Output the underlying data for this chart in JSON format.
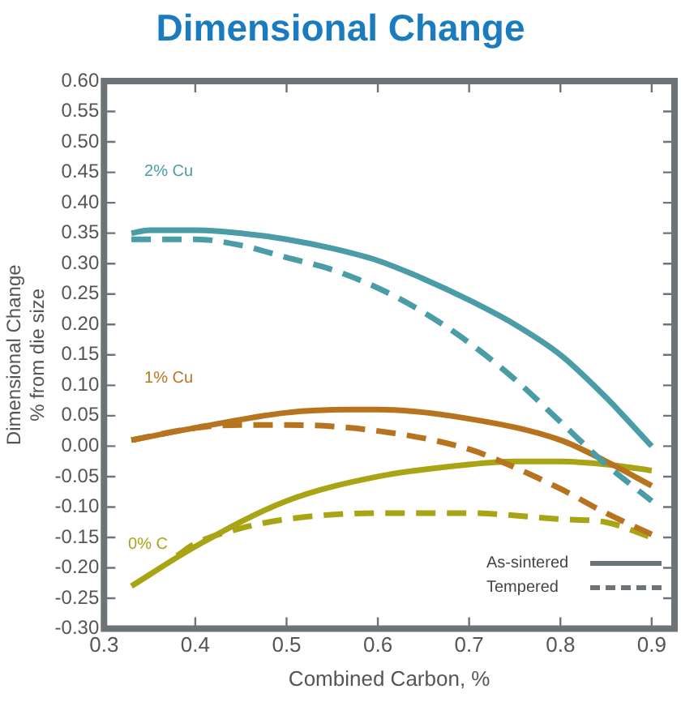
{
  "chart_data": {
    "type": "line",
    "title": "Dimensional Change",
    "xlabel": "Combined Carbon, %",
    "ylabel": "Dimensional Change\n% from die size",
    "xlim": [
      0.3,
      0.925
    ],
    "xticks": [
      0.3,
      0.4,
      0.5,
      0.6,
      0.7,
      0.8,
      0.9
    ],
    "ylim": [
      -0.3,
      0.6
    ],
    "yticks": [
      {
        "value": -0.3,
        "label": "-0.30"
      },
      {
        "value": -0.25,
        "label": "-0.25"
      },
      {
        "value": -0.2,
        "label": "-0.20"
      },
      {
        "value": -0.15,
        "label": "-0.15"
      },
      {
        "value": -0.1,
        "label": "-0.10"
      },
      {
        "value": -0.05,
        "label": "-0.05"
      },
      {
        "value": 0,
        "label": "0.00"
      },
      {
        "value": 0.05,
        "label": "0.05"
      },
      {
        "value": 0.1,
        "label": "0.10"
      },
      {
        "value": 0.15,
        "label": "0.15"
      },
      {
        "value": 0.2,
        "label": "0.20"
      },
      {
        "value": 0.25,
        "label": "0.25"
      },
      {
        "value": 0.3,
        "label": "0.30"
      },
      {
        "value": 0.35,
        "label": "0.35"
      },
      {
        "value": 0.4,
        "label": "0.40"
      },
      {
        "value": 0.45,
        "label": "0.45"
      },
      {
        "value": 0.5,
        "label": "0.50"
      },
      {
        "value": 0.55,
        "label": "0.55"
      },
      {
        "value": 0.6,
        "label": "0.60"
      }
    ],
    "grid": false,
    "legend": false,
    "marker": "none",
    "series": [
      {
        "color": "#4a9ca6",
        "line_style": "solid",
        "x": [
          0.33,
          0.35,
          0.4,
          0.45,
          0.5,
          0.55,
          0.6,
          0.65,
          0.7,
          0.75,
          0.8,
          0.85,
          0.9
        ],
        "values": [
          0.35,
          0.355,
          0.355,
          0.35,
          0.34,
          0.325,
          0.305,
          0.275,
          0.24,
          0.2,
          0.15,
          0.08,
          0.0
        ]
      },
      {
        "color": "#4a9ca6",
        "line_style": "dashed",
        "x": [
          0.33,
          0.4,
          0.45,
          0.5,
          0.55,
          0.6,
          0.65,
          0.7,
          0.75,
          0.8,
          0.85,
          0.9
        ],
        "values": [
          0.34,
          0.34,
          0.33,
          0.31,
          0.29,
          0.26,
          0.22,
          0.17,
          0.11,
          0.04,
          -0.03,
          -0.09
        ]
      },
      {
        "color": "#b8731e",
        "line_style": "solid",
        "x": [
          0.33,
          0.4,
          0.5,
          0.57,
          0.6,
          0.7,
          0.8,
          0.85,
          0.9
        ],
        "values": [
          0.01,
          0.03,
          0.055,
          0.06,
          0.06,
          0.045,
          0.01,
          -0.025,
          -0.065
        ]
      },
      {
        "color": "#b8731e",
        "line_style": "dashed",
        "x": [
          0.33,
          0.4,
          0.45,
          0.5,
          0.6,
          0.7,
          0.75,
          0.8,
          0.85,
          0.9
        ],
        "values": [
          0.01,
          0.03,
          0.035,
          0.035,
          0.025,
          -0.005,
          -0.035,
          -0.07,
          -0.11,
          -0.145
        ]
      },
      {
        "color": "#a8a414",
        "line_style": "solid",
        "x": [
          0.33,
          0.4,
          0.5,
          0.6,
          0.7,
          0.75,
          0.8,
          0.85,
          0.9
        ],
        "values": [
          -0.23,
          -0.165,
          -0.09,
          -0.05,
          -0.03,
          -0.025,
          -0.025,
          -0.03,
          -0.04
        ]
      },
      {
        "color": "#a8a414",
        "line_style": "dashed",
        "x": [
          0.38,
          0.4,
          0.45,
          0.5,
          0.6,
          0.7,
          0.8,
          0.85,
          0.9
        ],
        "values": [
          -0.18,
          -0.16,
          -0.135,
          -0.12,
          -0.11,
          -0.11,
          -0.12,
          -0.125,
          -0.15
        ]
      }
    ],
    "annotations": [
      "2% Cu",
      "1% Cu",
      "0% C",
      "As-sintered",
      "Tempered"
    ]
  }
}
